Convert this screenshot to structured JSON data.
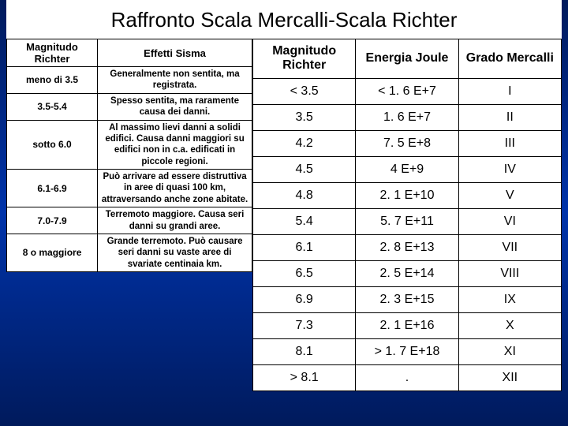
{
  "title": "Raffronto Scala Mercalli-Scala Richter",
  "left": {
    "headers": [
      "Magnitudo Richter",
      "Effetti Sisma"
    ],
    "rows": [
      {
        "mag": "meno di 3.5",
        "eff": "Generalmente non sentita, ma registrata."
      },
      {
        "mag": "3.5-5.4",
        "eff": "Spesso sentita, ma raramente causa dei danni."
      },
      {
        "mag": "sotto 6.0",
        "eff": "Al massimo lievi danni a solidi edifici. Causa danni maggiori su edifici non in c.a. edificati in piccole regioni."
      },
      {
        "mag": "6.1-6.9",
        "eff": "Può arrivare ad essere distruttiva in aree di quasi 100 km, attraversando anche zone abitate."
      },
      {
        "mag": "7.0-7.9",
        "eff": "Terremoto maggiore. Causa seri danni su grandi aree."
      },
      {
        "mag": "8 o maggiore",
        "eff": "Grande terremoto. Può causare seri danni su vaste aree di svariate centinaia km."
      }
    ]
  },
  "right": {
    "headers": [
      "Magnitudo Richter",
      "Energia Joule",
      "Grado Mercalli"
    ],
    "rows": [
      {
        "m": "< 3.5",
        "e": "< 1. 6 E+7",
        "g": "I"
      },
      {
        "m": "3.5",
        "e": "1. 6 E+7",
        "g": "II"
      },
      {
        "m": "4.2",
        "e": "7. 5 E+8",
        "g": "III"
      },
      {
        "m": "4.5",
        "e": "4 E+9",
        "g": "IV"
      },
      {
        "m": "4.8",
        "e": "2. 1 E+10",
        "g": "V"
      },
      {
        "m": "5.4",
        "e": "5. 7 E+11",
        "g": "VI"
      },
      {
        "m": "6.1",
        "e": "2. 8 E+13",
        "g": "VII"
      },
      {
        "m": "6.5",
        "e": "2. 5 E+14",
        "g": "VIII"
      },
      {
        "m": "6.9",
        "e": "2. 3 E+15",
        "g": "IX"
      },
      {
        "m": "7.3",
        "e": "2. 1 E+16",
        "g": "X"
      },
      {
        "m": "8.1",
        "e": "> 1. 7 E+18",
        "g": "XI"
      },
      {
        "m": "> 8.1",
        "e": ".",
        "g": "XII"
      }
    ]
  }
}
